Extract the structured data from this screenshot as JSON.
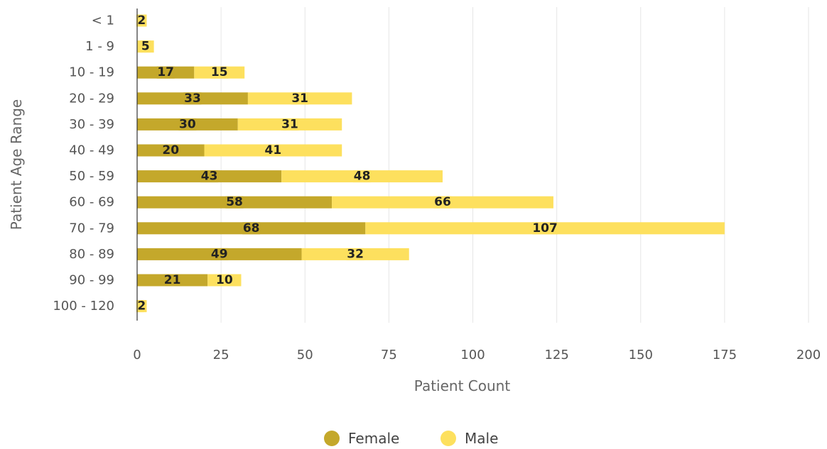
{
  "chart_data": {
    "type": "bar",
    "orientation": "horizontal",
    "stacked": true,
    "xlabel": "Patient Count",
    "ylabel": "Patient Age Range",
    "xlim": [
      0,
      200
    ],
    "xticks": [
      0,
      25,
      50,
      75,
      100,
      125,
      150,
      175,
      200
    ],
    "grid": true,
    "legend_position": "bottom",
    "categories": [
      "< 1",
      "1 - 9",
      "10 - 19",
      "20 - 29",
      "30 - 39",
      "40 - 49",
      "50 - 59",
      "60 - 69",
      "70 - 79",
      "80 - 89",
      "90 - 99",
      "100 - 120"
    ],
    "series": [
      {
        "name": "Female",
        "color": "#C4A82B",
        "values": [
          null,
          null,
          17,
          33,
          30,
          20,
          43,
          58,
          68,
          49,
          21,
          null
        ]
      },
      {
        "name": "Male",
        "color": "#FDE05E",
        "values": [
          2,
          5,
          15,
          31,
          31,
          41,
          48,
          66,
          107,
          32,
          10,
          2
        ]
      }
    ]
  }
}
